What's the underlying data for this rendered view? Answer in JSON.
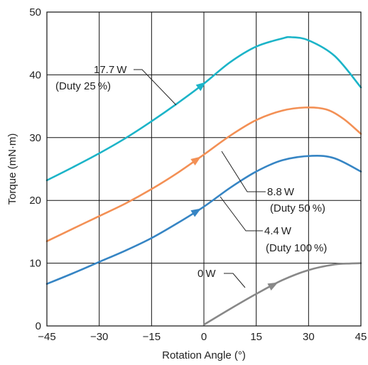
{
  "chart_data": {
    "type": "line",
    "title": "",
    "xlabel": "Rotation Angle (°)",
    "ylabel": "Torque (mN·m)",
    "xlim": [
      -45,
      45
    ],
    "ylim": [
      0,
      50
    ],
    "x_ticks": [
      -45,
      -30,
      -15,
      0,
      15,
      30,
      45
    ],
    "x_tick_labels": [
      "−45",
      "−30",
      "−15",
      "0",
      "15",
      "30",
      "45"
    ],
    "y_ticks": [
      0,
      10,
      20,
      30,
      40,
      50
    ],
    "y_tick_labels": [
      "0",
      "10",
      "20",
      "30",
      "40",
      "50"
    ],
    "grid": true,
    "series": [
      {
        "name": "17.7 W (Duty 25 %)",
        "color": "#1cb4c8",
        "x": [
          -45,
          -37.5,
          -30,
          -22.5,
          -15,
          -7.5,
          0,
          7.5,
          15,
          22.5,
          25,
          30,
          37.5,
          45
        ],
        "y": [
          23.2,
          25.3,
          27.5,
          29.9,
          32.6,
          35.5,
          38.6,
          42.0,
          44.5,
          45.8,
          46.0,
          45.5,
          43.0,
          38.0
        ],
        "arrow_at": -0.5
      },
      {
        "name": "8.8 W (Duty 50 %)",
        "color": "#f39055",
        "x": [
          -45,
          -37.5,
          -30,
          -22.5,
          -15,
          -7.5,
          0,
          7.5,
          15,
          22.5,
          29,
          35,
          40,
          45
        ],
        "y": [
          13.5,
          15.5,
          17.5,
          19.5,
          21.8,
          24.4,
          27.3,
          30.3,
          32.8,
          34.3,
          34.8,
          34.5,
          33.0,
          30.6
        ],
        "arrow_at": -2
      },
      {
        "name": "4.4 W (Duty 100 %)",
        "color": "#3685c4",
        "x": [
          -45,
          -37.5,
          -30,
          -22.5,
          -15,
          -7.5,
          0,
          7.5,
          15,
          22.5,
          31,
          37.5,
          45
        ],
        "y": [
          6.7,
          8.4,
          10.2,
          12.0,
          14.0,
          16.4,
          19.0,
          22.0,
          24.6,
          26.4,
          27.1,
          26.7,
          24.6
        ],
        "arrow_at": -2
      },
      {
        "name": "0 W",
        "color": "#888888",
        "x": [
          0,
          7.5,
          15,
          22.5,
          30,
          37.5,
          42,
          45
        ],
        "y": [
          0.2,
          2.7,
          5.1,
          7.3,
          8.9,
          9.8,
          9.95,
          10.0
        ],
        "arrow_at": 20
      }
    ],
    "annotations": [
      {
        "lines": [
          "17.7 W",
          "(Duty 25 %)"
        ],
        "series": 0
      },
      {
        "lines": [
          "8.8 W",
          "(Duty 50 %)"
        ],
        "series": 1
      },
      {
        "lines": [
          "4.4 W",
          "(Duty 100 %)"
        ],
        "series": 2
      },
      {
        "lines": [
          "0 W"
        ],
        "series": 3
      }
    ]
  }
}
